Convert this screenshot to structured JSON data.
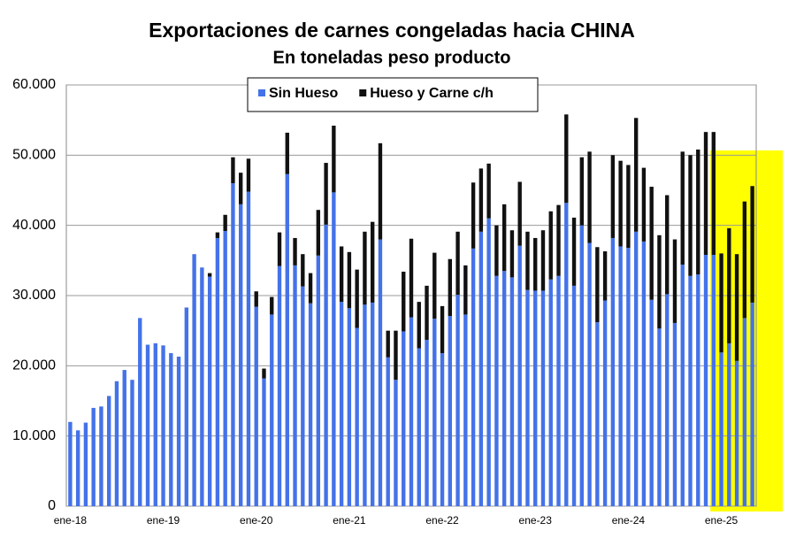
{
  "chart_data": {
    "type": "stacked_bar",
    "title": "Exportaciones de carnes congeladas hacia CHINA",
    "subtitle": "En toneladas peso producto",
    "categories": [
      "ene-18",
      null,
      null,
      null,
      null,
      null,
      null,
      null,
      null,
      null,
      null,
      null,
      "ene-19",
      null,
      null,
      null,
      null,
      null,
      null,
      null,
      null,
      null,
      null,
      null,
      "ene-20",
      null,
      null,
      null,
      null,
      null,
      null,
      null,
      null,
      null,
      null,
      null,
      "ene-21",
      null,
      null,
      null,
      null,
      null,
      null,
      null,
      null,
      null,
      null,
      null,
      "ene-22",
      null,
      null,
      null,
      null,
      null,
      null,
      null,
      null,
      null,
      null,
      null,
      "ene-23",
      null,
      null,
      null,
      null,
      null,
      null,
      null,
      null,
      null,
      null,
      null,
      "ene-24",
      null,
      null,
      null,
      null,
      null,
      null,
      null,
      null,
      null,
      null,
      null,
      "ene-25",
      null,
      null,
      null,
      null
    ],
    "series": [
      {
        "name": "Sin Hueso",
        "color": "#4472e8",
        "values": [
          12000,
          10800,
          11900,
          14000,
          14200,
          15700,
          17800,
          19400,
          18000,
          26800,
          23000,
          23200,
          22900,
          21800,
          21300,
          28300,
          35900,
          34000,
          32700,
          38200,
          39200,
          46000,
          43000,
          44800,
          28400,
          18200,
          27300,
          34200,
          47300,
          34300,
          31300,
          28900,
          35700,
          40100,
          44700,
          29100,
          28200,
          25400,
          28700,
          29000,
          38000,
          21200,
          18000,
          24900,
          26900,
          22500,
          23700,
          26700,
          21800,
          27100,
          30100,
          27300,
          36700,
          39100,
          41000,
          32800,
          33500,
          32600,
          37100,
          30800,
          30700,
          30700,
          32300,
          32800,
          43200,
          31400,
          40000,
          37500,
          26200,
          29300,
          38200,
          37000,
          36800,
          39100,
          37700,
          29400,
          25300,
          30200,
          26100,
          34400,
          32800,
          33000,
          35800,
          35800,
          21900,
          23200,
          20700,
          26800,
          29000
        ]
      },
      {
        "name": "Hueso y Carne c/h",
        "color": "#111111",
        "values": [
          0,
          0,
          0,
          0,
          0,
          0,
          0,
          0,
          0,
          0,
          0,
          0,
          0,
          0,
          0,
          0,
          0,
          0,
          500,
          800,
          2300,
          3700,
          4500,
          4700,
          2200,
          1400,
          2500,
          4800,
          5900,
          3900,
          4600,
          4300,
          6500,
          8800,
          9500,
          7900,
          8000,
          8300,
          10400,
          11500,
          13700,
          3800,
          7000,
          8500,
          11200,
          6600,
          7700,
          9400,
          6700,
          8100,
          9000,
          7000,
          9400,
          9000,
          7800,
          7200,
          9500,
          6700,
          9100,
          8300,
          7500,
          8600,
          9700,
          10100,
          12600,
          9700,
          9700,
          13000,
          10700,
          7000,
          11800,
          12200,
          11800,
          16200,
          10500,
          16100,
          13300,
          14100,
          11900,
          16100,
          17200,
          17800,
          17500,
          17500,
          14100,
          16400,
          15200,
          16600,
          16600
        ]
      }
    ],
    "ylim": [
      0,
      60000
    ],
    "yticks": [
      0,
      {
        "value": 10000,
        "label": "10.000"
      },
      {
        "value": 20000,
        "label": "20.000"
      },
      {
        "value": 30000,
        "label": "30.000"
      },
      {
        "value": 40000,
        "label": "40.000"
      },
      {
        "value": 50000,
        "label": "50.000"
      },
      {
        "value": 60000,
        "label": "60.000"
      }
    ],
    "grid": true,
    "legend": "top"
  }
}
